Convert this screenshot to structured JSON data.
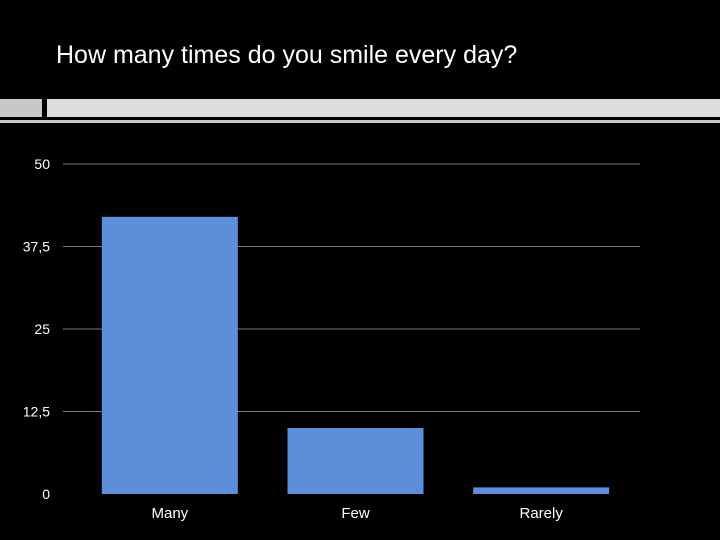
{
  "slide": {
    "title": "How many times do you smile every day?"
  },
  "colors": {
    "background": "#000000",
    "bar": "#5b8fd9",
    "grid": "#7a7a7a",
    "text": "#ffffff",
    "divider_light": "#dcdcdc",
    "divider_dark": "#c8c8c8"
  },
  "chart_data": {
    "type": "bar",
    "title": "",
    "xlabel": "",
    "ylabel": "",
    "categories": [
      "Many",
      "Few",
      "Rarely"
    ],
    "values": [
      42,
      10,
      1
    ],
    "ylim": [
      0,
      50
    ],
    "yticks": [
      0,
      12.5,
      25,
      37.5,
      50
    ],
    "ytick_labels": [
      "0",
      "12,5",
      "25",
      "37,5",
      "50"
    ],
    "grid": true,
    "legend": "none"
  }
}
